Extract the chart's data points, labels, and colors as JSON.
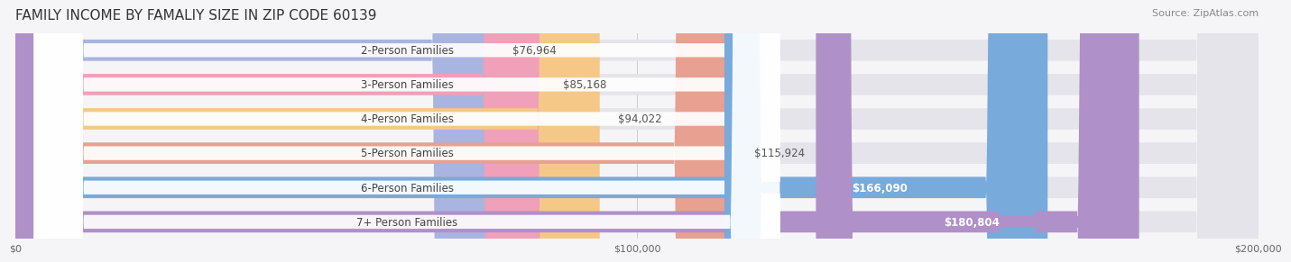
{
  "title": "FAMILY INCOME BY FAMALIY SIZE IN ZIP CODE 60139",
  "source": "Source: ZipAtlas.com",
  "categories": [
    "2-Person Families",
    "3-Person Families",
    "4-Person Families",
    "5-Person Families",
    "6-Person Families",
    "7+ Person Families"
  ],
  "values": [
    76964,
    85168,
    94022,
    115924,
    166090,
    180804
  ],
  "labels": [
    "$76,964",
    "$85,168",
    "$94,022",
    "$115,924",
    "$166,090",
    "$180,804"
  ],
  "bar_colors": [
    "#aab4e0",
    "#f0a0b8",
    "#f5c888",
    "#e8a090",
    "#78aadc",
    "#b090c8"
  ],
  "bar_bg_color": "#e8e8ee",
  "label_bg_colors": [
    "#e8e8ee",
    "#e8e8ee",
    "#e8e8ee",
    "#e8e8ee",
    "#78aadc",
    "#b090c8"
  ],
  "label_text_colors": [
    "#555555",
    "#555555",
    "#555555",
    "#555555",
    "#ffffff",
    "#ffffff"
  ],
  "xlim": [
    0,
    200000
  ],
  "xticks": [
    0,
    100000,
    200000
  ],
  "xticklabels": [
    "$0",
    "$100,000",
    "$200,000"
  ],
  "background_color": "#f5f5f8",
  "bar_bg_alpha": 0.5,
  "title_fontsize": 11,
  "label_fontsize": 8.5,
  "category_fontsize": 8.5,
  "source_fontsize": 8
}
